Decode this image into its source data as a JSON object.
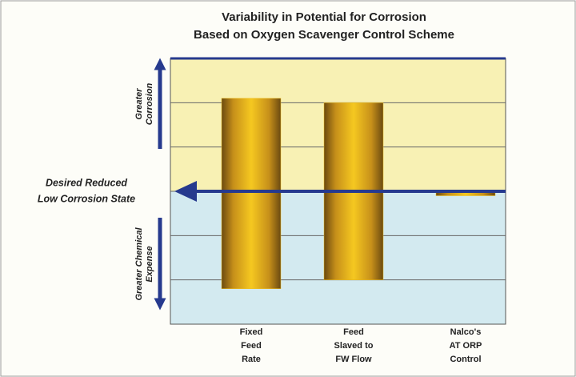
{
  "chart_data": {
    "type": "range-bar",
    "title": [
      "Variability in Potential for Corrosion",
      "Based on Oxygen Scavenger Control Scheme"
    ],
    "upper_label": [
      "Greater",
      "Corrosion"
    ],
    "lower_label": [
      "Greater Chemical",
      "Expense"
    ],
    "baseline_label": [
      "Desired Reduced",
      "Low Corrosion State"
    ],
    "categories": [
      [
        "Fixed",
        "Feed",
        "Rate"
      ],
      [
        "Feed",
        "Slaved to",
        "FW Flow"
      ],
      [
        "Nalco's",
        "AT ORP",
        "Control"
      ]
    ],
    "ranges": [
      [
        -2.2,
        2.1
      ],
      [
        -2.0,
        2.0
      ],
      [
        -0.1,
        0
      ]
    ],
    "color": "#f0c020",
    "upper_color": "#f8f1b4",
    "lower_color": "#d3eaf0",
    "baseline_color": "#263a8e",
    "ylim": [
      -3,
      3
    ],
    "yticks": [
      -2,
      -1,
      0,
      1,
      2
    ],
    "grid": true
  }
}
